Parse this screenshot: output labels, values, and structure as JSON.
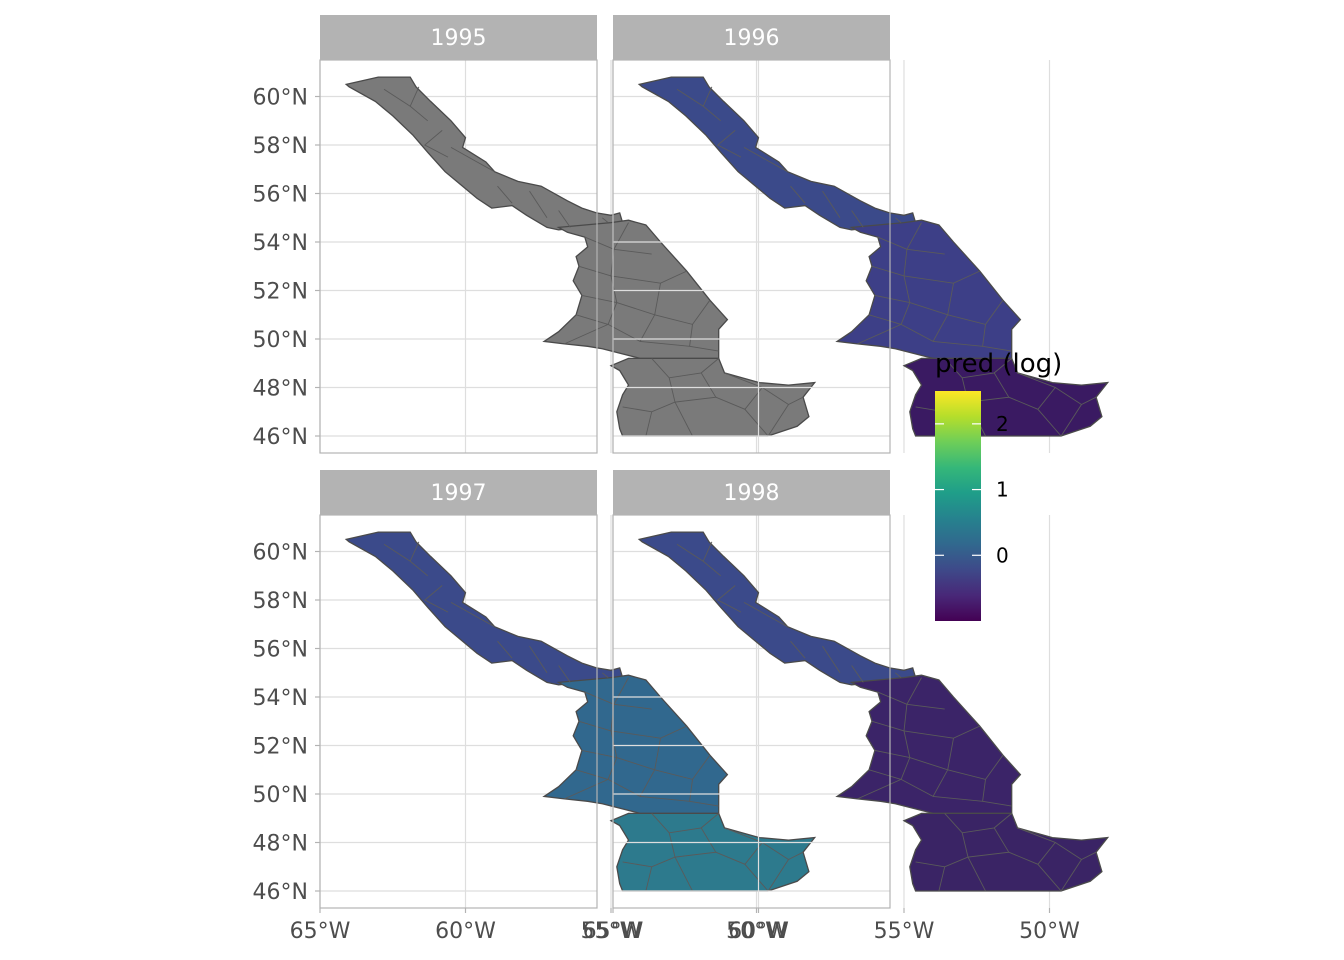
{
  "chart_data": {
    "type": "choropleth-map",
    "facet_by": "year",
    "panels": [
      {
        "year": "1995",
        "fill_north": "#7a7a7a",
        "fill_central": "#7a7a7a",
        "fill_south": "#7a7a7a",
        "note": "no predictions (NA)"
      },
      {
        "year": "1996",
        "fill_north": "#3b4a8a",
        "fill_central": "#3d3f87",
        "fill_south": "#3a1a62",
        "pred_log_north": -0.15,
        "pred_log_central": -0.25,
        "pred_log_south": -0.75
      },
      {
        "year": "1997",
        "fill_north": "#3b4a8a",
        "fill_central": "#31688e",
        "fill_south": "#2d7a8d",
        "pred_log_north": -0.1,
        "pred_log_central": 0.4,
        "pred_log_south": 0.6
      },
      {
        "year": "1998",
        "fill_north": "#3b4a8a",
        "fill_central": "#3b2468",
        "fill_south": "#3a2465",
        "pred_log_north": -0.15,
        "pred_log_central": -0.7,
        "pred_log_south": -0.7
      }
    ],
    "x_axis": {
      "ticks": [
        "65°W",
        "60°W",
        "55°W",
        "50°W"
      ],
      "tick_values": [
        -65,
        -60,
        -55,
        -50
      ],
      "xlim": [
        -65,
        -46.5
      ]
    },
    "y_axis": {
      "ticks": [
        "46°N",
        "48°N",
        "50°N",
        "52°N",
        "54°N",
        "56°N",
        "58°N",
        "60°N"
      ],
      "tick_values": [
        46,
        48,
        50,
        52,
        54,
        56,
        58,
        60
      ],
      "ylim": [
        45.3,
        61.6
      ]
    },
    "legend": {
      "title": "pred (log)",
      "placement": "right",
      "range": [
        -1.0,
        2.5
      ],
      "breaks": [
        {
          "value": 0,
          "label": "0"
        },
        {
          "value": 1,
          "label": "1"
        },
        {
          "value": 2,
          "label": "2"
        }
      ],
      "colors": [
        "#440154",
        "#482878",
        "#3e4989",
        "#31688e",
        "#26828e",
        "#1f9e89",
        "#35b779",
        "#6ece58",
        "#b5de2b",
        "#fde725"
      ]
    },
    "grid": true
  }
}
